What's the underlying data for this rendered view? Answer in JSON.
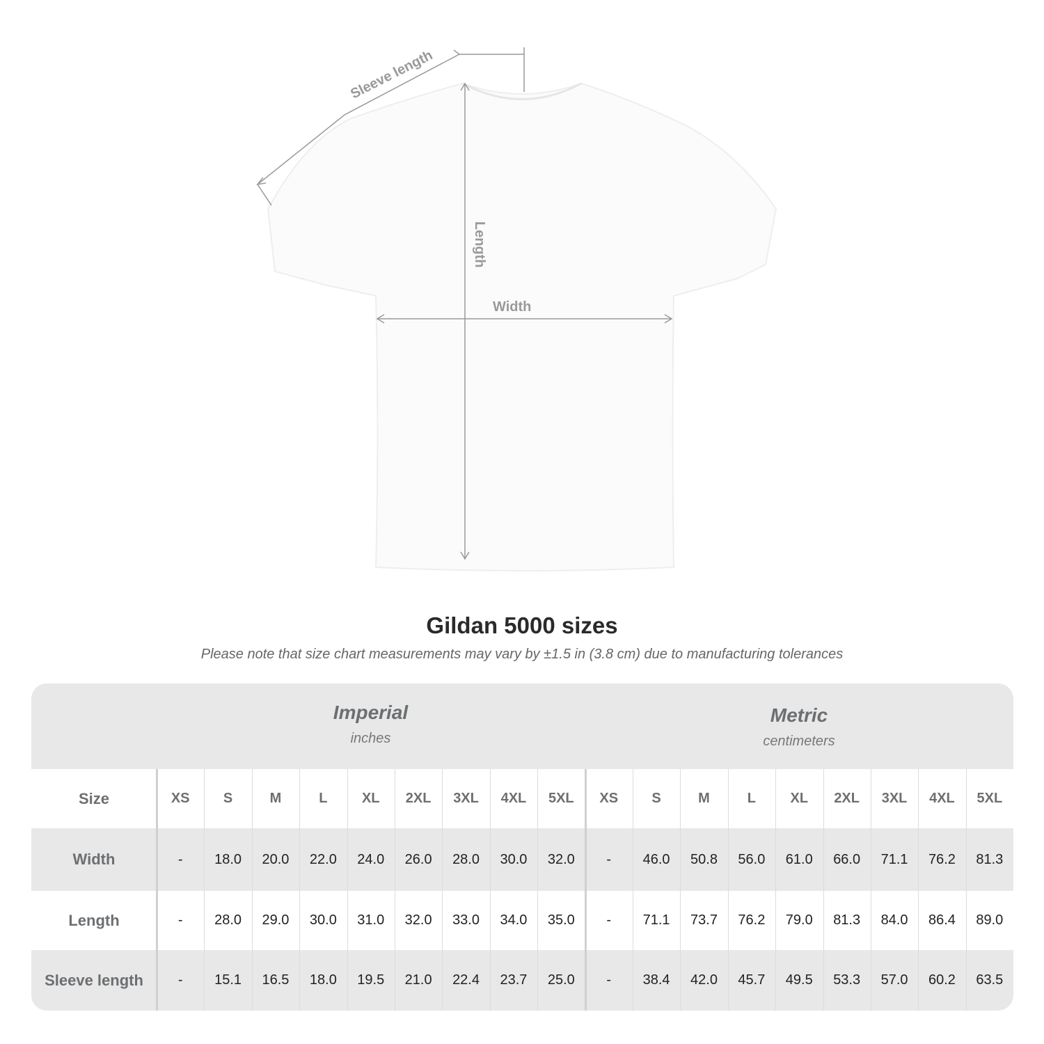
{
  "diagram": {
    "sleeve_label": "Sleeve length",
    "length_label": "Length",
    "width_label": "Width"
  },
  "title": "Gildan 5000 sizes",
  "note": "Please note that size chart measurements may vary by ±1.5 in (3.8 cm) due to manufacturing tolerances",
  "table": {
    "imperial": {
      "title": "Imperial",
      "unit": "inches"
    },
    "metric": {
      "title": "Metric",
      "unit": "centimeters"
    },
    "size_label": "Size",
    "sizes": [
      "XS",
      "S",
      "M",
      "L",
      "XL",
      "2XL",
      "3XL",
      "4XL",
      "5XL"
    ],
    "rows": [
      {
        "label": "Width",
        "imperial": [
          "-",
          "18.0",
          "20.0",
          "22.0",
          "24.0",
          "26.0",
          "28.0",
          "30.0",
          "32.0"
        ],
        "metric": [
          "-",
          "46.0",
          "50.8",
          "56.0",
          "61.0",
          "66.0",
          "71.1",
          "76.2",
          "81.3"
        ]
      },
      {
        "label": "Length",
        "imperial": [
          "-",
          "28.0",
          "29.0",
          "30.0",
          "31.0",
          "32.0",
          "33.0",
          "34.0",
          "35.0"
        ],
        "metric": [
          "-",
          "71.1",
          "73.7",
          "76.2",
          "79.0",
          "81.3",
          "84.0",
          "86.4",
          "89.0"
        ]
      },
      {
        "label": "Sleeve length",
        "imperial": [
          "-",
          "15.1",
          "16.5",
          "18.0",
          "19.5",
          "21.0",
          "22.4",
          "23.7",
          "25.0"
        ],
        "metric": [
          "-",
          "38.4",
          "42.0",
          "45.7",
          "49.5",
          "53.3",
          "57.0",
          "60.2",
          "63.5"
        ]
      }
    ]
  }
}
